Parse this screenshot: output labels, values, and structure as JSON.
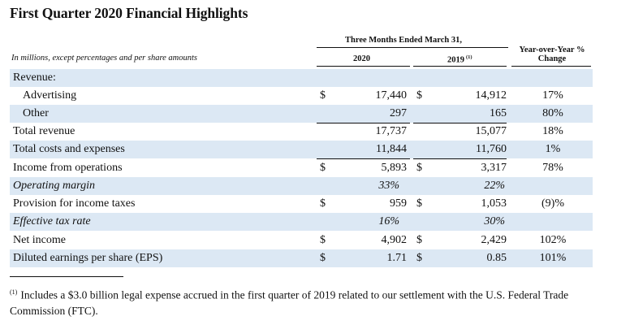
{
  "title": "First Quarter 2020 Financial Highlights",
  "header": {
    "period": "Three Months Ended March 31,",
    "col_2020": "2020",
    "col_2019": "2019",
    "col_2019_note": "(1)",
    "change_line1": "Year-over-Year %",
    "change_line2": "Change",
    "units": "In millions, except percentages and per share amounts"
  },
  "rows": [
    {
      "label": "Revenue:",
      "d1": "",
      "v2020": "",
      "d2": "",
      "v2019": "",
      "change": ""
    },
    {
      "label": "Advertising",
      "d1": "$",
      "v2020": "17,440",
      "d2": "$",
      "v2019": "14,912",
      "change": "17%"
    },
    {
      "label": "Other",
      "d1": "",
      "v2020": "297",
      "d2": "",
      "v2019": "165",
      "change": "80%"
    },
    {
      "label": "Total revenue",
      "d1": "",
      "v2020": "17,737",
      "d2": "",
      "v2019": "15,077",
      "change": "18%"
    },
    {
      "label": "Total costs and expenses",
      "d1": "",
      "v2020": "11,844",
      "d2": "",
      "v2019": "11,760",
      "change": "1%"
    },
    {
      "label": "Income from operations",
      "d1": "$",
      "v2020": "5,893",
      "d2": "$",
      "v2019": "3,317",
      "change": "78%"
    },
    {
      "label": "Operating margin",
      "d1": "",
      "v2020": "33%",
      "d2": "",
      "v2019": "22%",
      "change": ""
    },
    {
      "label": "Provision for income taxes",
      "d1": "$",
      "v2020": "959",
      "d2": "$",
      "v2019": "1,053",
      "change": "(9)%"
    },
    {
      "label": "Effective tax rate",
      "d1": "",
      "v2020": "16%",
      "d2": "",
      "v2019": "30%",
      "change": ""
    },
    {
      "label": "Net income",
      "d1": "$",
      "v2020": "4,902",
      "d2": "$",
      "v2019": "2,429",
      "change": "102%"
    },
    {
      "label": "Diluted earnings per share (EPS)",
      "d1": "$",
      "v2020": "1.71",
      "d2": "$",
      "v2019": "0.85",
      "change": "101%"
    }
  ],
  "footnote": {
    "marker": "(1)",
    "text": "Includes a $3.0 billion legal expense accrued in the first quarter of 2019 related to our settlement with the U.S. Federal Trade Commission (FTC)."
  }
}
